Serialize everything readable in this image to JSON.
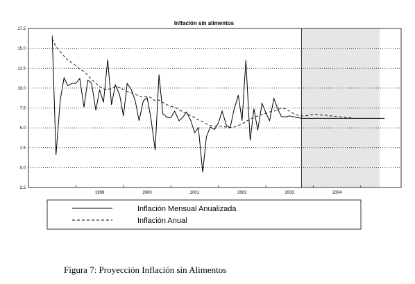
{
  "chart_data": {
    "type": "line",
    "title": "Inflación sin alimentos",
    "xlabel": "",
    "ylabel": "",
    "ylim": [
      -2.5,
      17.5
    ],
    "yticks": [
      "17.5",
      "15.0",
      "12.5",
      "10.0",
      "7.5",
      "5.0",
      "2.5",
      "0.0",
      "-2.5"
    ],
    "year_labels": [
      "1999",
      "2000",
      "2001",
      "2002",
      "2003",
      "2004"
    ],
    "grid": "horizontal dotted",
    "projection_shading": {
      "from": 2003.75,
      "to": 2005.4,
      "color": "#e6e6e6"
    },
    "series": [
      {
        "name": "Inflación Mensual Anualizada",
        "style": "solid",
        "x": [
          1998.5,
          1998.58,
          1998.67,
          1998.75,
          1998.83,
          1998.92,
          1999.0,
          1999.08,
          1999.17,
          1999.25,
          1999.33,
          1999.42,
          1999.5,
          1999.58,
          1999.67,
          1999.75,
          1999.83,
          1999.92,
          2000.0,
          2000.08,
          2000.17,
          2000.25,
          2000.33,
          2000.42,
          2000.5,
          2000.58,
          2000.67,
          2000.75,
          2000.83,
          2000.92,
          2001.0,
          2001.08,
          2001.17,
          2001.25,
          2001.33,
          2001.42,
          2001.5,
          2001.58,
          2001.67,
          2001.75,
          2001.83,
          2001.92,
          2002.0,
          2002.08,
          2002.17,
          2002.25,
          2002.33,
          2002.42,
          2002.5,
          2002.58,
          2002.67,
          2002.75,
          2002.83,
          2002.92,
          2003.0,
          2003.08,
          2003.17,
          2003.25,
          2003.33,
          2003.42,
          2003.5,
          2003.58,
          2003.67,
          2003.75,
          2003.83,
          2003.92,
          2004.0,
          2004.08,
          2004.17,
          2004.25,
          2004.33,
          2004.42,
          2004.5,
          2004.58,
          2004.67,
          2004.75,
          2004.83,
          2004.92,
          2005.0,
          2005.08,
          2005.17,
          2005.25,
          2005.33,
          2005.42,
          2005.5
        ],
        "values": [
          16.6,
          1.6,
          8.5,
          11.3,
          10.3,
          10.6,
          10.6,
          11.2,
          7.6,
          11.0,
          10.6,
          7.2,
          9.8,
          8.2,
          13.6,
          7.9,
          10.4,
          9.2,
          6.5,
          10.6,
          9.8,
          8.4,
          5.9,
          8.4,
          8.8,
          6.2,
          2.2,
          11.7,
          6.8,
          6.3,
          6.3,
          7.1,
          5.9,
          6.3,
          7.0,
          5.9,
          4.4,
          5.0,
          -0.6,
          3.9,
          5.1,
          4.8,
          5.6,
          7.1,
          5.3,
          5.0,
          7.3,
          9.1,
          5.9,
          13.5,
          3.4,
          7.4,
          4.7,
          8.1,
          6.9,
          5.9,
          8.7,
          7.4,
          6.4,
          6.4,
          6.5,
          6.4,
          6.3,
          6.2,
          6.2,
          6.2,
          6.2,
          6.2,
          6.2,
          6.2,
          6.2,
          6.2,
          6.2,
          6.2,
          6.2,
          6.2,
          6.2,
          6.2,
          6.2,
          6.2,
          6.2,
          6.2,
          6.2,
          6.2,
          6.2
        ]
      },
      {
        "name": "Inflación Anual",
        "style": "dashed",
        "x": [
          1998.5,
          1998.58,
          1998.67,
          1998.75,
          1998.83,
          1998.92,
          1999.0,
          1999.08,
          1999.17,
          1999.25,
          1999.33,
          1999.42,
          1999.5,
          1999.58,
          1999.67,
          1999.75,
          1999.83,
          1999.92,
          2000.0,
          2000.08,
          2000.17,
          2000.25,
          2000.33,
          2000.42,
          2000.5,
          2000.58,
          2000.67,
          2000.75,
          2000.83,
          2000.92,
          2001.0,
          2001.08,
          2001.17,
          2001.25,
          2001.33,
          2001.42,
          2001.5,
          2001.58,
          2001.67,
          2001.75,
          2001.83,
          2001.92,
          2002.0,
          2002.08,
          2002.17,
          2002.25,
          2002.33,
          2002.42,
          2002.5,
          2002.58,
          2002.67,
          2002.75,
          2002.83,
          2002.92,
          2003.0,
          2003.08,
          2003.17,
          2003.25,
          2003.33,
          2003.42,
          2003.5,
          2003.58,
          2003.67,
          2003.75,
          2003.83,
          2003.92,
          2004.0,
          2004.08,
          2004.17,
          2004.25,
          2004.33,
          2004.42,
          2004.5,
          2004.58,
          2004.67,
          2004.75,
          2004.83,
          2004.92,
          2005.0,
          2005.08,
          2005.17,
          2005.25,
          2005.33,
          2005.42,
          2005.5
        ],
        "values": [
          16.2,
          15.2,
          14.6,
          14.0,
          13.5,
          13.2,
          12.8,
          12.4,
          12.1,
          11.6,
          11.1,
          10.6,
          10.2,
          9.9,
          9.8,
          10.0,
          10.2,
          10.1,
          9.8,
          9.6,
          9.4,
          9.2,
          9.0,
          8.9,
          9.0,
          8.8,
          8.4,
          8.5,
          8.2,
          7.9,
          7.7,
          7.6,
          7.3,
          7.0,
          6.8,
          6.5,
          6.3,
          6.0,
          5.8,
          5.5,
          5.3,
          5.2,
          5.2,
          5.2,
          5.1,
          5.0,
          5.1,
          5.3,
          5.5,
          5.8,
          6.1,
          6.3,
          6.5,
          6.7,
          6.8,
          7.0,
          7.1,
          7.3,
          7.5,
          7.4,
          7.1,
          6.8,
          6.6,
          6.5,
          6.5,
          6.6,
          6.7,
          6.7,
          6.6,
          6.6,
          6.5,
          6.5,
          6.4,
          6.4,
          6.3,
          6.3,
          6.2,
          6.2,
          6.2,
          6.2,
          6.2,
          6.2,
          6.2,
          6.2,
          6.2
        ]
      }
    ],
    "legend": {
      "placement": "bottom",
      "entries": [
        {
          "label": "Inflación Mensual Anualizada",
          "style": "solid"
        },
        {
          "label": "Inflación Anual",
          "style": "dashed"
        }
      ]
    }
  },
  "caption": "Figura 7: Proyección Inflación sin Alimentos"
}
